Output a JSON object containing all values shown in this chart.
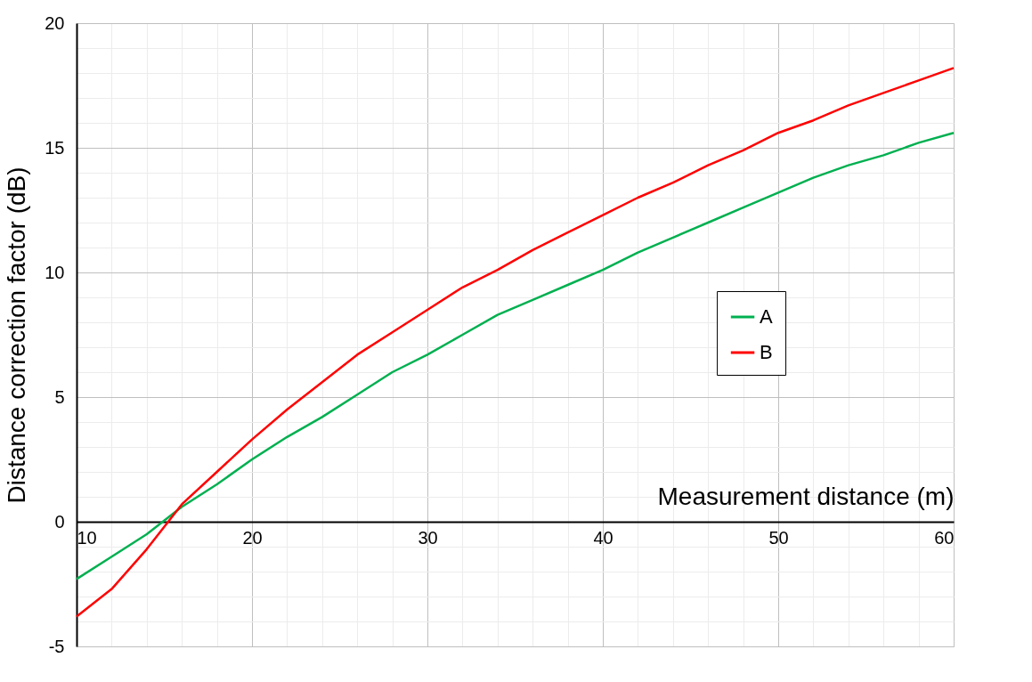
{
  "chart_data": {
    "type": "line",
    "xlabel": "Measurement distance (m)",
    "ylabel": "Distance correction factor (dB)",
    "x": [
      10,
      12,
      14,
      16,
      18,
      20,
      22,
      24,
      26,
      28,
      30,
      32,
      34,
      36,
      38,
      40,
      42,
      44,
      46,
      48,
      50,
      52,
      54,
      56,
      58,
      60
    ],
    "series": [
      {
        "name": "A",
        "color": "#00b050",
        "values": [
          -2.3,
          -1.4,
          -0.5,
          0.6,
          1.5,
          2.5,
          3.4,
          4.2,
          5.1,
          6.0,
          6.7,
          7.5,
          8.3,
          8.9,
          9.5,
          10.1,
          10.8,
          11.4,
          12.0,
          12.6,
          13.2,
          13.8,
          14.3,
          14.7,
          15.2,
          15.6
        ]
      },
      {
        "name": "B",
        "color": "#ff0000",
        "values": [
          -3.8,
          -2.7,
          -1.1,
          0.7,
          2.0,
          3.3,
          4.5,
          5.6,
          6.7,
          7.6,
          8.5,
          9.4,
          10.1,
          10.9,
          11.6,
          12.3,
          13.0,
          13.6,
          14.3,
          14.9,
          15.6,
          16.1,
          16.7,
          17.2,
          17.7,
          18.2
        ]
      }
    ],
    "xlim": [
      10,
      60
    ],
    "ylim": [
      -5,
      20
    ],
    "xticks": [
      10,
      {
        "value": 12,
        "label": null
      },
      {
        "value": 14,
        "label": null
      },
      {
        "value": 16,
        "label": null
      },
      {
        "value": 18,
        "label": null
      },
      20,
      {
        "value": 22,
        "label": null
      },
      {
        "value": 24,
        "label": null
      },
      {
        "value": 26,
        "label": null
      },
      {
        "value": 28,
        "label": null
      },
      30,
      {
        "value": 32,
        "label": null
      },
      {
        "value": 34,
        "label": null
      },
      {
        "value": 36,
        "label": null
      },
      {
        "value": 38,
        "label": null
      },
      40,
      {
        "value": 42,
        "label": null
      },
      {
        "value": 44,
        "label": null
      },
      {
        "value": 46,
        "label": null
      },
      {
        "value": 48,
        "label": null
      },
      50,
      {
        "value": 52,
        "label": null
      },
      {
        "value": 54,
        "label": null
      },
      {
        "value": 56,
        "label": null
      },
      {
        "value": 58,
        "label": null
      },
      60
    ],
    "yticks": [
      -5,
      {
        "value": -4,
        "label": null
      },
      {
        "value": -3,
        "label": null
      },
      {
        "value": -2,
        "label": null
      },
      {
        "value": -1,
        "label": null
      },
      0,
      {
        "value": 1,
        "label": null
      },
      {
        "value": 2,
        "label": null
      },
      {
        "value": 3,
        "label": null
      },
      {
        "value": 4,
        "label": null
      },
      5,
      {
        "value": 6,
        "label": null
      },
      {
        "value": 7,
        "label": null
      },
      {
        "value": 8,
        "label": null
      },
      {
        "value": 9,
        "label": null
      },
      10,
      {
        "value": 11,
        "label": null
      },
      {
        "value": 12,
        "label": null
      },
      {
        "value": 13,
        "label": null
      },
      {
        "value": 14,
        "label": null
      },
      15,
      {
        "value": 16,
        "label": null
      },
      {
        "value": 17,
        "label": null
      },
      {
        "value": 18,
        "label": null
      },
      {
        "value": 19,
        "label": null
      },
      20
    ],
    "grid": true,
    "legend": "right"
  }
}
